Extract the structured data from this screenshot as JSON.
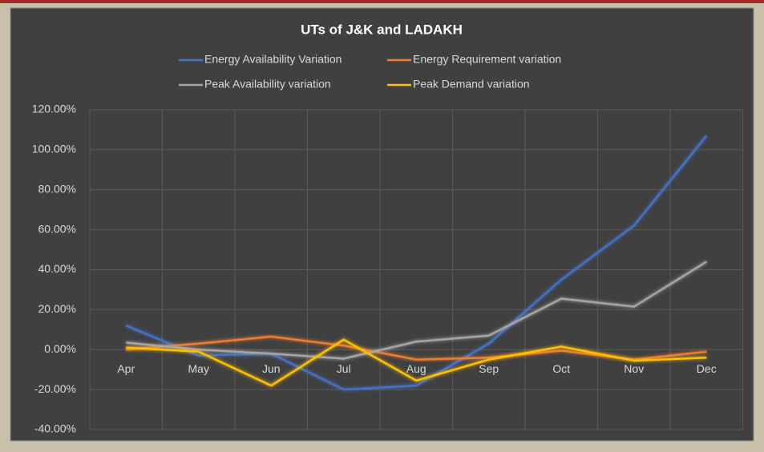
{
  "chart_data": {
    "type": "line",
    "title": "UTs of J&K and LADAKH",
    "categories": [
      "Apr",
      "May",
      "Jun",
      "Jul",
      "Aug",
      "Sep",
      "Oct",
      "Nov",
      "Dec"
    ],
    "series": [
      {
        "name": "Energy Availability Variation",
        "color": "#4472c4",
        "values": [
          12,
          -3,
          -2,
          -20,
          -18,
          3,
          35,
          62,
          107
        ]
      },
      {
        "name": "Energy Requirement variation",
        "color": "#ed7d31",
        "values": [
          0,
          3,
          6.5,
          2,
          -5,
          -4,
          -0.5,
          -5,
          -1
        ]
      },
      {
        "name": "Peak Availability variation",
        "color": "#a5a5a5",
        "values": [
          3.5,
          0,
          -2,
          -4.5,
          4,
          7,
          25.5,
          21.5,
          44
        ]
      },
      {
        "name": "Peak Demand variation",
        "color": "#ffc000",
        "values": [
          1,
          -1,
          -18,
          5,
          -15.5,
          -5,
          1.5,
          -5.5,
          -4
        ]
      }
    ],
    "ylim": [
      -40,
      120
    ],
    "yticks": [
      {
        "value": -40,
        "label": "-40.00%"
      },
      {
        "value": -20,
        "label": "-20.00%"
      },
      {
        "value": 0,
        "label": "0.00%"
      },
      {
        "value": 20,
        "label": "20.00%"
      },
      {
        "value": 40,
        "label": "40.00%"
      },
      {
        "value": 60,
        "label": "60.00%"
      },
      {
        "value": 80,
        "label": "80.00%"
      },
      {
        "value": 100,
        "label": "100.00%"
      },
      {
        "value": 120,
        "label": "120.00%"
      }
    ],
    "grid": true,
    "legend": "top"
  }
}
